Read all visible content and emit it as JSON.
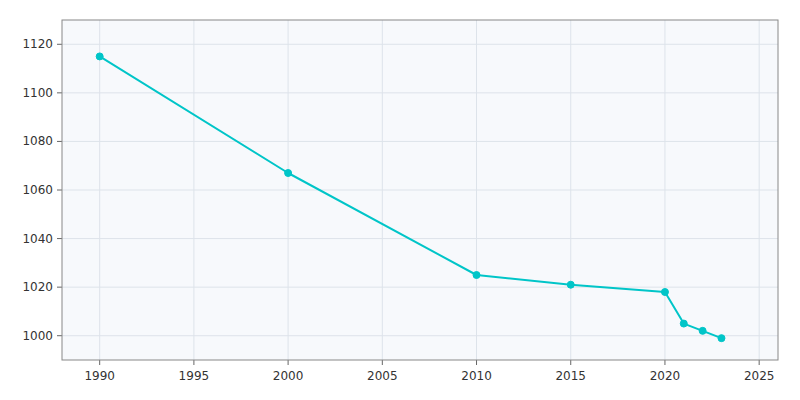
{
  "chart_data": {
    "type": "line",
    "x": [
      1990,
      2000,
      2010,
      2015,
      2020,
      2021,
      2022,
      2023
    ],
    "values": [
      1115,
      1067,
      1025,
      1021,
      1018,
      1005,
      1002,
      999
    ],
    "color": "#00C5C8",
    "marker": "circle",
    "xlim": [
      1988,
      2026
    ],
    "ylim": [
      990,
      1130
    ],
    "xticks": [
      1990,
      1995,
      2000,
      2005,
      2010,
      2015,
      2020,
      2025
    ],
    "yticks": [
      1000,
      1020,
      1040,
      1060,
      1080,
      1100,
      1120
    ],
    "grid": true
  }
}
